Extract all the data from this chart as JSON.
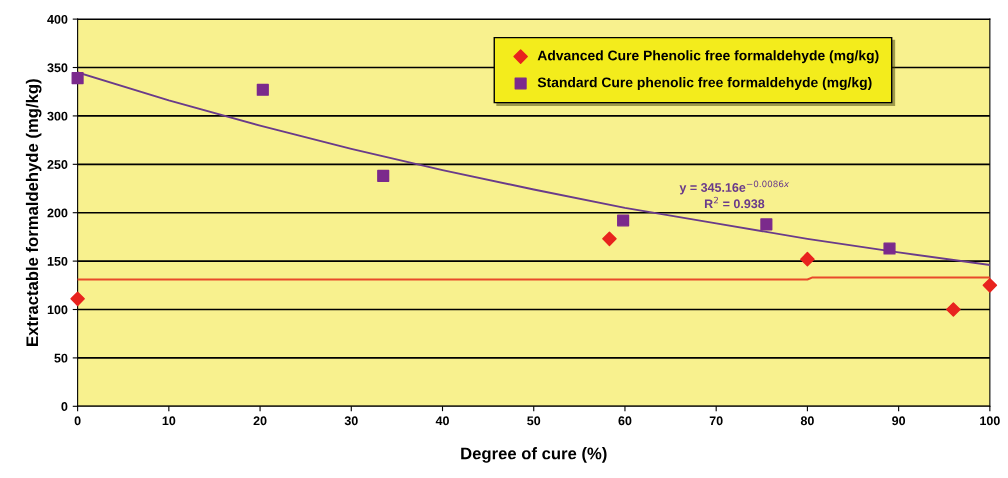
{
  "chart_data": {
    "type": "scatter",
    "xlabel": "Degree of cure (%)",
    "ylabel": "Extractable formaldehyde (mg/kg)",
    "xlim": [
      0,
      100
    ],
    "ylim": [
      0,
      400
    ],
    "xticks": [
      0,
      10,
      20,
      30,
      40,
      50,
      60,
      70,
      80,
      90,
      100
    ],
    "yticks": [
      0,
      50,
      100,
      150,
      200,
      250,
      300,
      350,
      400
    ],
    "grid": "y",
    "legend": "top right",
    "series": [
      {
        "name": "Advanced Cure Phenolic free formaldehyde (mg/kg)",
        "marker": "diamond",
        "color": "#e8231e",
        "x": [
          0,
          58.3,
          80,
          96,
          100
        ],
        "values": [
          111,
          173,
          152,
          100,
          125
        ]
      },
      {
        "name": "Standard Cure phenolic free formaldehyde (mg/kg)",
        "marker": "square",
        "color": "#7b2a8c",
        "x": [
          0,
          20.3,
          33.5,
          59.8,
          75.5,
          89
        ],
        "values": [
          339,
          327,
          238,
          192,
          188,
          163
        ]
      },
      {
        "type": "line",
        "marker": "none",
        "color": "#e84a2a",
        "x": [
          0,
          80,
          80.5,
          100
        ],
        "values": [
          131,
          131,
          133,
          133
        ]
      },
      {
        "type": "line",
        "marker": "none",
        "color": "#6a3b8a",
        "x": [
          0,
          10,
          20,
          30,
          40,
          50,
          60,
          70,
          80,
          90,
          100
        ],
        "values": [
          345,
          316,
          290,
          266,
          244,
          224,
          205,
          189,
          173,
          159,
          146
        ]
      }
    ],
    "annotations": [
      "y = 345.16e$^{−0.0086x}$",
      "R$^{2}$ = 0.938"
    ]
  }
}
